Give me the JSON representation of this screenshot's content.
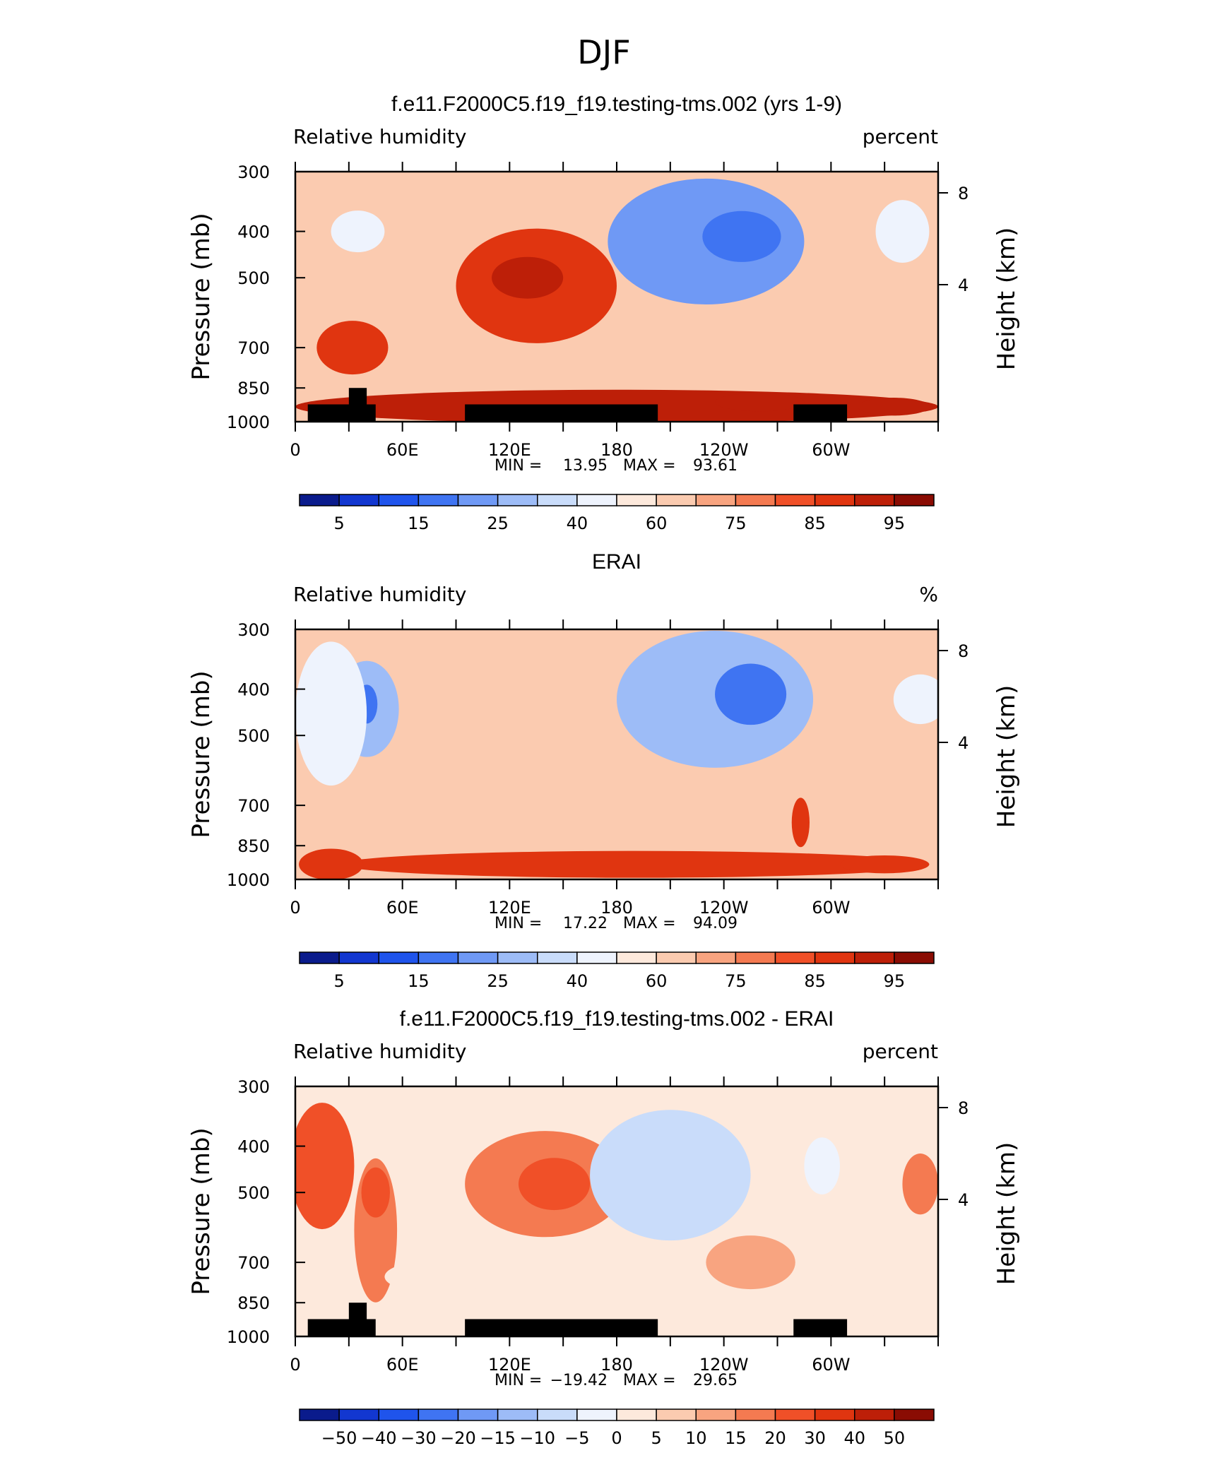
{
  "figure_title": "DJF",
  "chart_data": [
    {
      "type": "heatmap",
      "title": "f.e11.F2000C5.f19_f19.testing-tms.002 (yrs 1-9)",
      "left_string": "Relative humidity",
      "right_string": "percent",
      "ylabel": "Pressure (mb)",
      "ylabel_right": "Height (km)",
      "x_ticks": [
        "0",
        "60E",
        "120E",
        "180",
        "120W",
        "60W"
      ],
      "x_tick_values": [
        0,
        60,
        120,
        180,
        240,
        300
      ],
      "xlim": [
        0,
        360
      ],
      "y_ticks": [
        "300",
        "400",
        "500",
        "700",
        "850",
        "1000"
      ],
      "y_tick_values": [
        300,
        400,
        500,
        700,
        850,
        1000
      ],
      "ylim": [
        1000,
        300
      ],
      "y_right_ticks": [
        "8",
        "4"
      ],
      "y_right_tick_values": [
        8,
        4
      ],
      "min_label": "MIN =",
      "min_value": "13.95",
      "max_label": "MAX =",
      "max_value": "93.61",
      "colorbar_labels": [
        "5",
        "15",
        "25",
        "40",
        "60",
        "75",
        "85",
        "95"
      ],
      "colorbar_colors": [
        "#0a1b8c",
        "#1237d0",
        "#1f54ec",
        "#3f74f2",
        "#6f99f5",
        "#9dbcf7",
        "#c9dcfa",
        "#eef3fd",
        "#fde9dc",
        "#fbcbb0",
        "#f8a480",
        "#f47a51",
        "#f05028",
        "#e03510",
        "#bd1f08",
        "#8a0c03"
      ],
      "terrain_boxes": [
        {
          "lon": [
            7,
            45
          ],
          "p_top": 920
        },
        {
          "lon": [
            30,
            40
          ],
          "p_top": 850
        },
        {
          "lon": [
            95,
            203
          ],
          "p_top": 920
        },
        {
          "lon": [
            279,
            309
          ],
          "p_top": 920
        }
      ],
      "blobs": [
        {
          "lon": 135,
          "p": 520,
          "val": 88,
          "rx": 45,
          "ry": 140
        },
        {
          "lon": 130,
          "p": 500,
          "val": 92,
          "rx": 20,
          "ry": 50
        },
        {
          "lon": 230,
          "p": 420,
          "val": 22,
          "rx": 55,
          "ry": 130
        },
        {
          "lon": 250,
          "p": 410,
          "val": 15,
          "rx": 22,
          "ry": 50
        },
        {
          "lon": 35,
          "p": 400,
          "val": 45,
          "rx": 15,
          "ry": 40
        },
        {
          "lon": 340,
          "p": 400,
          "val": 45,
          "rx": 15,
          "ry": 60
        },
        {
          "lon": 32,
          "p": 700,
          "val": 85,
          "rx": 20,
          "ry": 90
        },
        {
          "lon": 180,
          "p": 930,
          "val": 90,
          "rx": 180,
          "ry": 80
        },
        {
          "lon": 260,
          "p": 910,
          "val": 93,
          "rx": 25,
          "ry": 40
        },
        {
          "lon": 335,
          "p": 930,
          "val": 93,
          "rx": 20,
          "ry": 40
        }
      ]
    },
    {
      "type": "heatmap",
      "title": "ERAI",
      "left_string": "Relative humidity",
      "right_string": "%",
      "ylabel": "Pressure (mb)",
      "ylabel_right": "Height (km)",
      "x_ticks": [
        "0",
        "60E",
        "120E",
        "180",
        "120W",
        "60W"
      ],
      "x_tick_values": [
        0,
        60,
        120,
        180,
        240,
        300
      ],
      "xlim": [
        0,
        360
      ],
      "y_ticks": [
        "300",
        "400",
        "500",
        "700",
        "850",
        "1000"
      ],
      "y_tick_values": [
        300,
        400,
        500,
        700,
        850,
        1000
      ],
      "ylim": [
        1000,
        300
      ],
      "y_right_ticks": [
        "8",
        "4"
      ],
      "y_right_tick_values": [
        8,
        4
      ],
      "min_label": "MIN =",
      "min_value": "17.22",
      "max_label": "MAX =",
      "max_value": "94.09",
      "colorbar_labels": [
        "5",
        "15",
        "25",
        "40",
        "60",
        "75",
        "85",
        "95"
      ],
      "colorbar_colors": [
        "#0a1b8c",
        "#1237d0",
        "#1f54ec",
        "#3f74f2",
        "#6f99f5",
        "#9dbcf7",
        "#c9dcfa",
        "#eef3fd",
        "#fde9dc",
        "#fbcbb0",
        "#f8a480",
        "#f47a51",
        "#f05028",
        "#e03510",
        "#bd1f08",
        "#8a0c03"
      ],
      "terrain_boxes": [],
      "blobs": [
        {
          "lon": 40,
          "p": 440,
          "val": 25,
          "rx": 18,
          "ry": 100
        },
        {
          "lon": 40,
          "p": 430,
          "val": 15,
          "rx": 6,
          "ry": 40
        },
        {
          "lon": 235,
          "p": 420,
          "val": 25,
          "rx": 55,
          "ry": 160
        },
        {
          "lon": 255,
          "p": 410,
          "val": 18,
          "rx": 20,
          "ry": 60
        },
        {
          "lon": 350,
          "p": 420,
          "val": 40,
          "rx": 15,
          "ry": 50
        },
        {
          "lon": 20,
          "p": 450,
          "val": 45,
          "rx": 20,
          "ry": 150
        },
        {
          "lon": 190,
          "p": 930,
          "val": 88,
          "rx": 165,
          "ry": 60
        },
        {
          "lon": 20,
          "p": 930,
          "val": 85,
          "rx": 18,
          "ry": 70
        },
        {
          "lon": 283,
          "p": 760,
          "val": 85,
          "rx": 5,
          "ry": 90
        },
        {
          "lon": 330,
          "p": 930,
          "val": 88,
          "rx": 25,
          "ry": 40
        }
      ]
    },
    {
      "type": "heatmap",
      "title": "f.e11.F2000C5.f19_f19.testing-tms.002 - ERAI",
      "left_string": "Relative humidity",
      "right_string": "percent",
      "ylabel": "Pressure (mb)",
      "ylabel_right": "Height (km)",
      "x_ticks": [
        "0",
        "60E",
        "120E",
        "180",
        "120W",
        "60W"
      ],
      "x_tick_values": [
        0,
        60,
        120,
        180,
        240,
        300
      ],
      "xlim": [
        0,
        360
      ],
      "y_ticks": [
        "300",
        "400",
        "500",
        "700",
        "850",
        "1000"
      ],
      "y_tick_values": [
        300,
        400,
        500,
        700,
        850,
        1000
      ],
      "ylim": [
        1000,
        300
      ],
      "y_right_ticks": [
        "8",
        "4"
      ],
      "y_right_tick_values": [
        8,
        4
      ],
      "min_label": "MIN =",
      "min_value": "−19.42",
      "max_label": "MAX =",
      "max_value": "29.65",
      "colorbar_labels": [
        "−50",
        "−40",
        "−30",
        "−20",
        "−15",
        "−10",
        "−5",
        "0",
        "5",
        "10",
        "15",
        "20",
        "30",
        "40",
        "50"
      ],
      "colorbar_colors": [
        "#0a1b8c",
        "#1237d0",
        "#1f54ec",
        "#3f74f2",
        "#6f99f5",
        "#9dbcf7",
        "#c9dcfa",
        "#eef3fd",
        "#fde9dc",
        "#fbcbb0",
        "#f8a480",
        "#f47a51",
        "#f05028",
        "#e03510",
        "#bd1f08",
        "#8a0c03"
      ],
      "terrain_boxes": [
        {
          "lon": [
            7,
            45
          ],
          "p_top": 920
        },
        {
          "lon": [
            30,
            40
          ],
          "p_top": 850
        },
        {
          "lon": [
            95,
            203
          ],
          "p_top": 920
        },
        {
          "lon": [
            279,
            309
          ],
          "p_top": 920
        }
      ],
      "blobs": [
        {
          "lon": 140,
          "p": 480,
          "val": 16,
          "rx": 45,
          "ry": 120
        },
        {
          "lon": 145,
          "p": 480,
          "val": 22,
          "rx": 20,
          "ry": 60
        },
        {
          "lon": 15,
          "p": 440,
          "val": 20,
          "rx": 18,
          "ry": 130
        },
        {
          "lon": 45,
          "p": 600,
          "val": 15,
          "rx": 12,
          "ry": 200
        },
        {
          "lon": 45,
          "p": 500,
          "val": 22,
          "rx": 8,
          "ry": 60
        },
        {
          "lon": 210,
          "p": 460,
          "val": -8,
          "rx": 45,
          "ry": 140
        },
        {
          "lon": 255,
          "p": 700,
          "val": 12,
          "rx": 25,
          "ry": 90
        },
        {
          "lon": 350,
          "p": 480,
          "val": 18,
          "rx": 10,
          "ry": 70
        },
        {
          "lon": 295,
          "p": 440,
          "val": -5,
          "rx": 10,
          "ry": 60
        },
        {
          "lon": 80,
          "p": 750,
          "val": 4,
          "rx": 30,
          "ry": 60
        },
        {
          "lon": 330,
          "p": 800,
          "val": 4,
          "rx": 30,
          "ry": 100
        }
      ]
    }
  ]
}
